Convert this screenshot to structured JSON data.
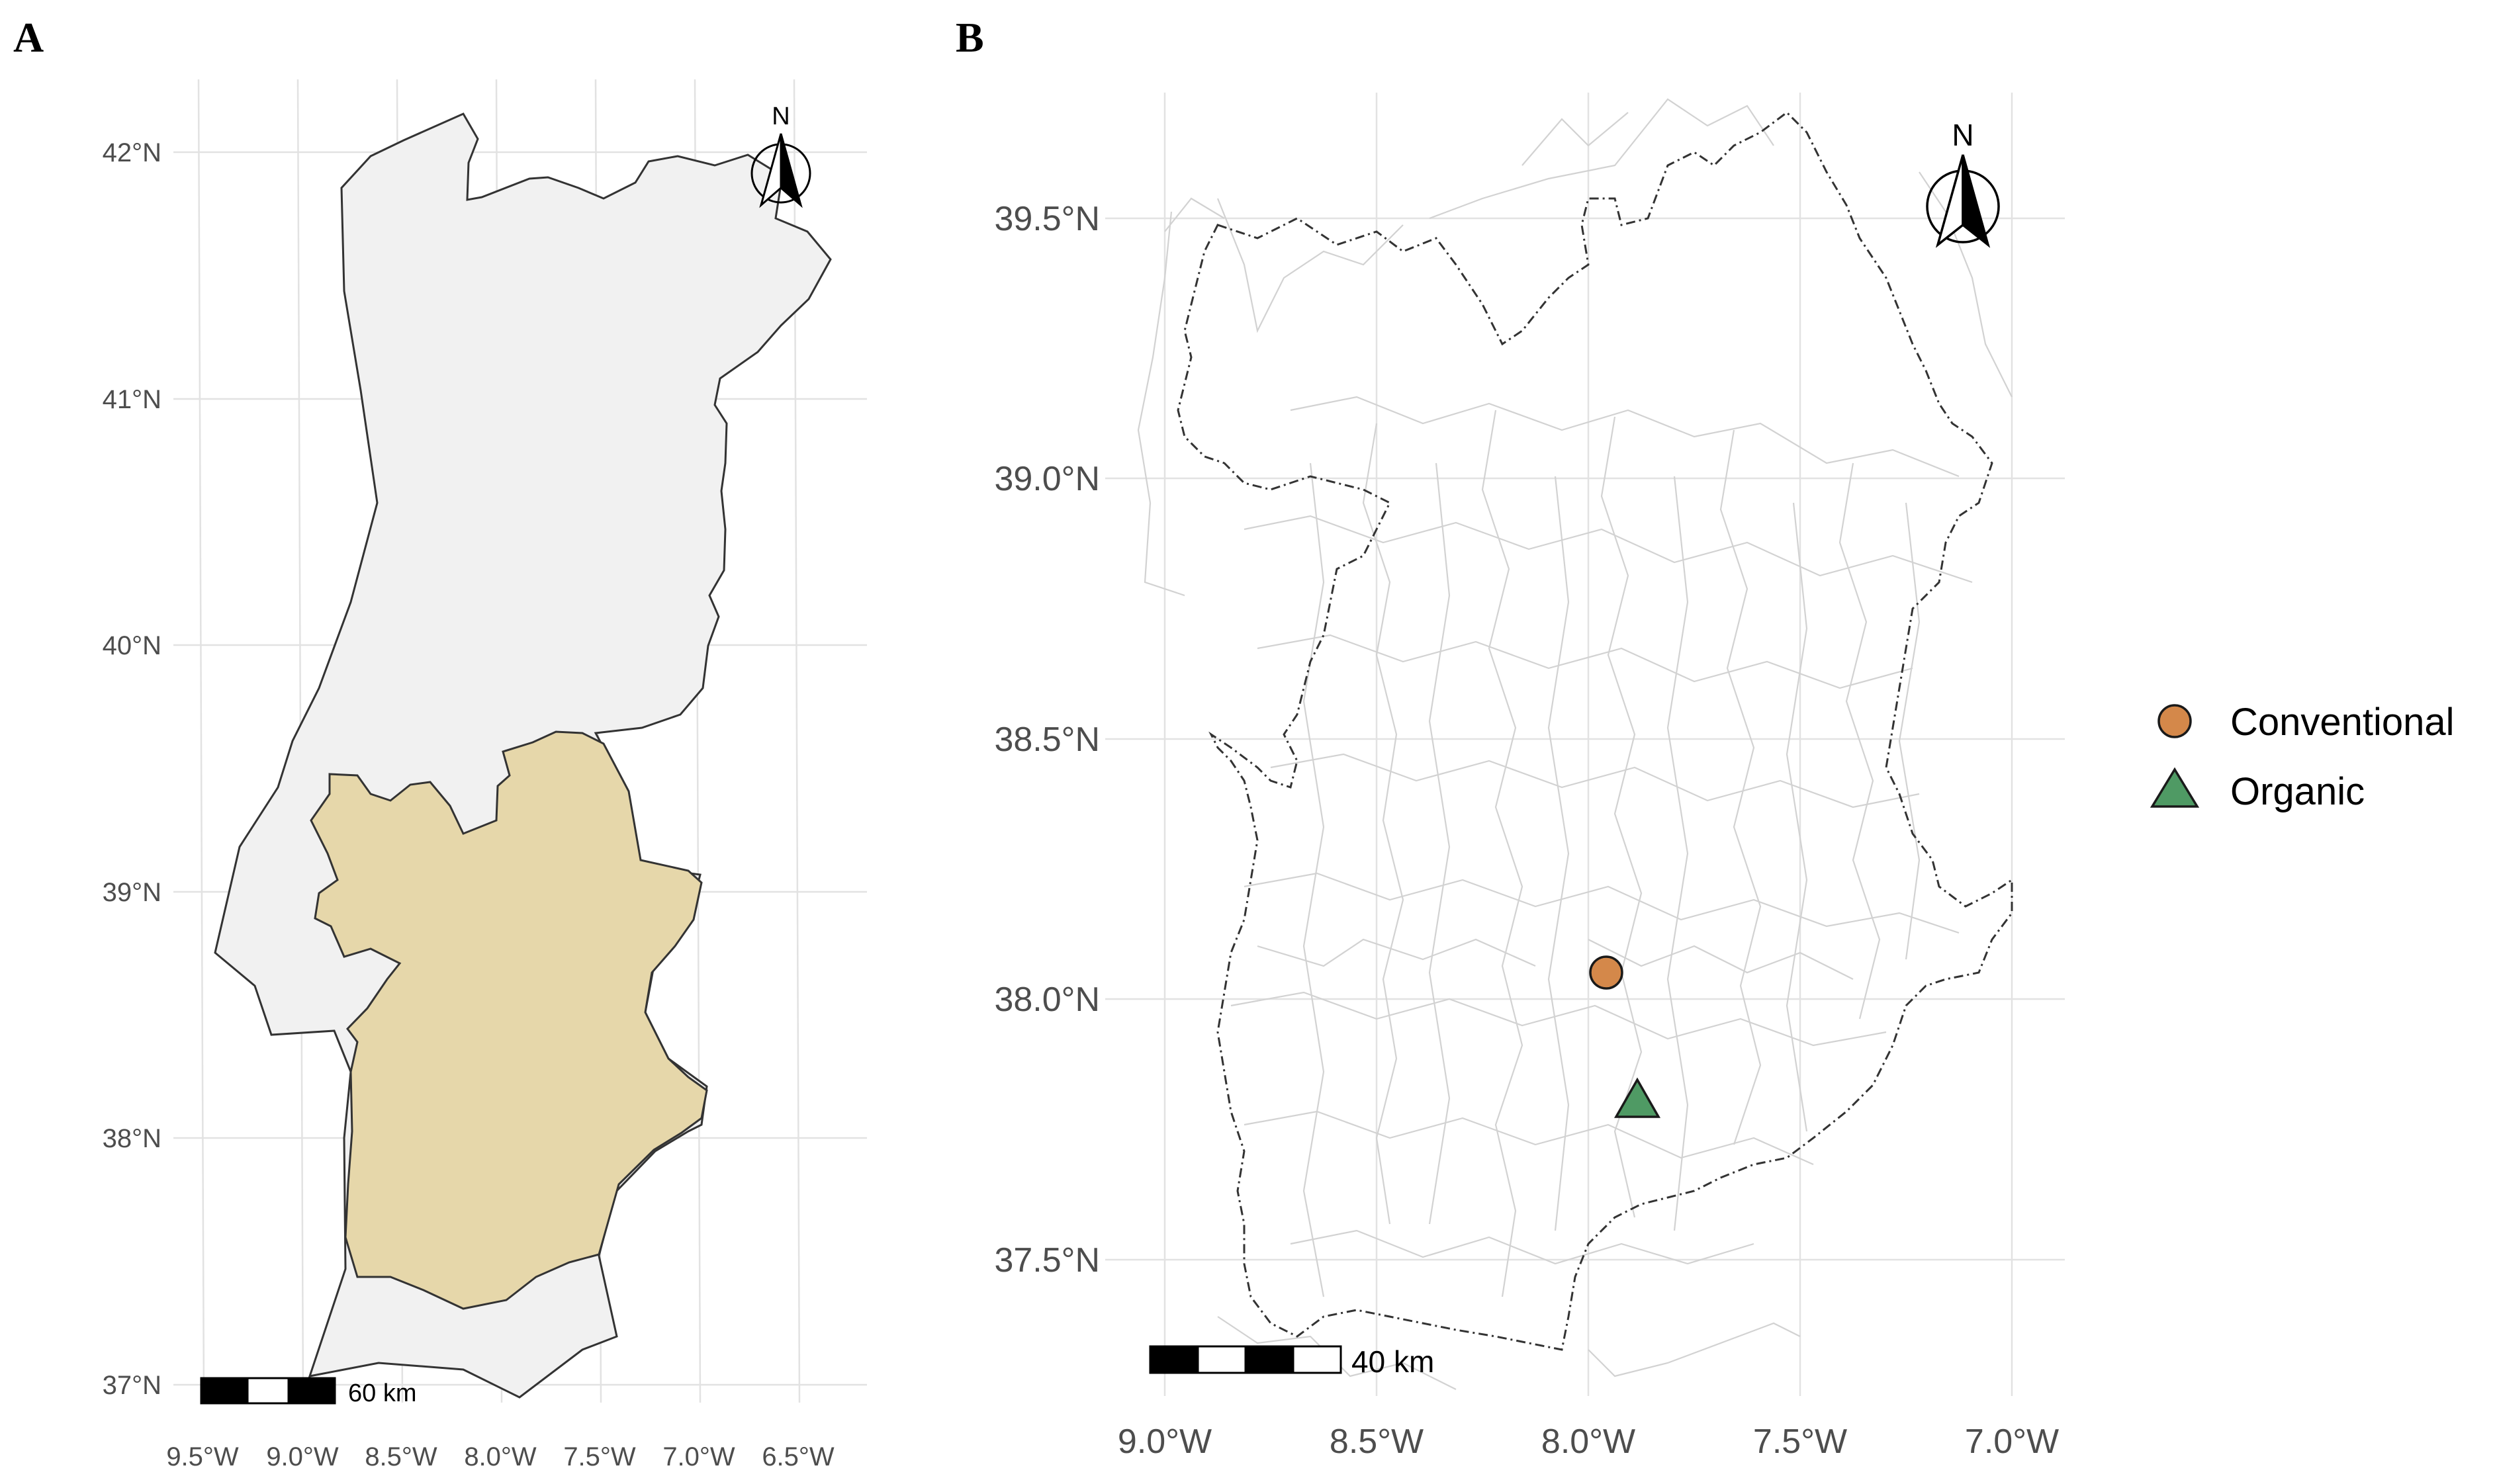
{
  "panelA": {
    "letter": "A",
    "lat_ticks": [
      "42°N",
      "41°N",
      "40°N",
      "39°N",
      "38°N",
      "37°N"
    ],
    "lon_ticks": [
      "9.5°W",
      "9.0°W",
      "8.5°W",
      "8.0°W",
      "7.5°W",
      "7.0°W",
      "6.5°W"
    ],
    "scale_label": "60 km",
    "north_label": "N",
    "colors": {
      "country": "#f1f1f1",
      "region": "#e6d7aa",
      "outline": "#333333"
    }
  },
  "panelB": {
    "letter": "B",
    "lat_ticks": [
      "39.5°N",
      "39.0°N",
      "38.5°N",
      "38.0°N",
      "37.5°N"
    ],
    "lon_ticks": [
      "9.0°W",
      "8.5°W",
      "8.0°W",
      "7.5°W",
      "7.0°W"
    ],
    "scale_label": "40 km",
    "north_label": "N",
    "legend": [
      {
        "label": "Conventional",
        "shape": "circle",
        "color": "#d4884a"
      },
      {
        "label": "Organic",
        "shape": "triangle",
        "color": "#4f9a64"
      }
    ],
    "sites": [
      {
        "type": "Conventional",
        "lon": -7.95,
        "lat": 38.05
      },
      {
        "type": "Organic",
        "lon": -7.88,
        "lat": 37.8
      }
    ]
  }
}
